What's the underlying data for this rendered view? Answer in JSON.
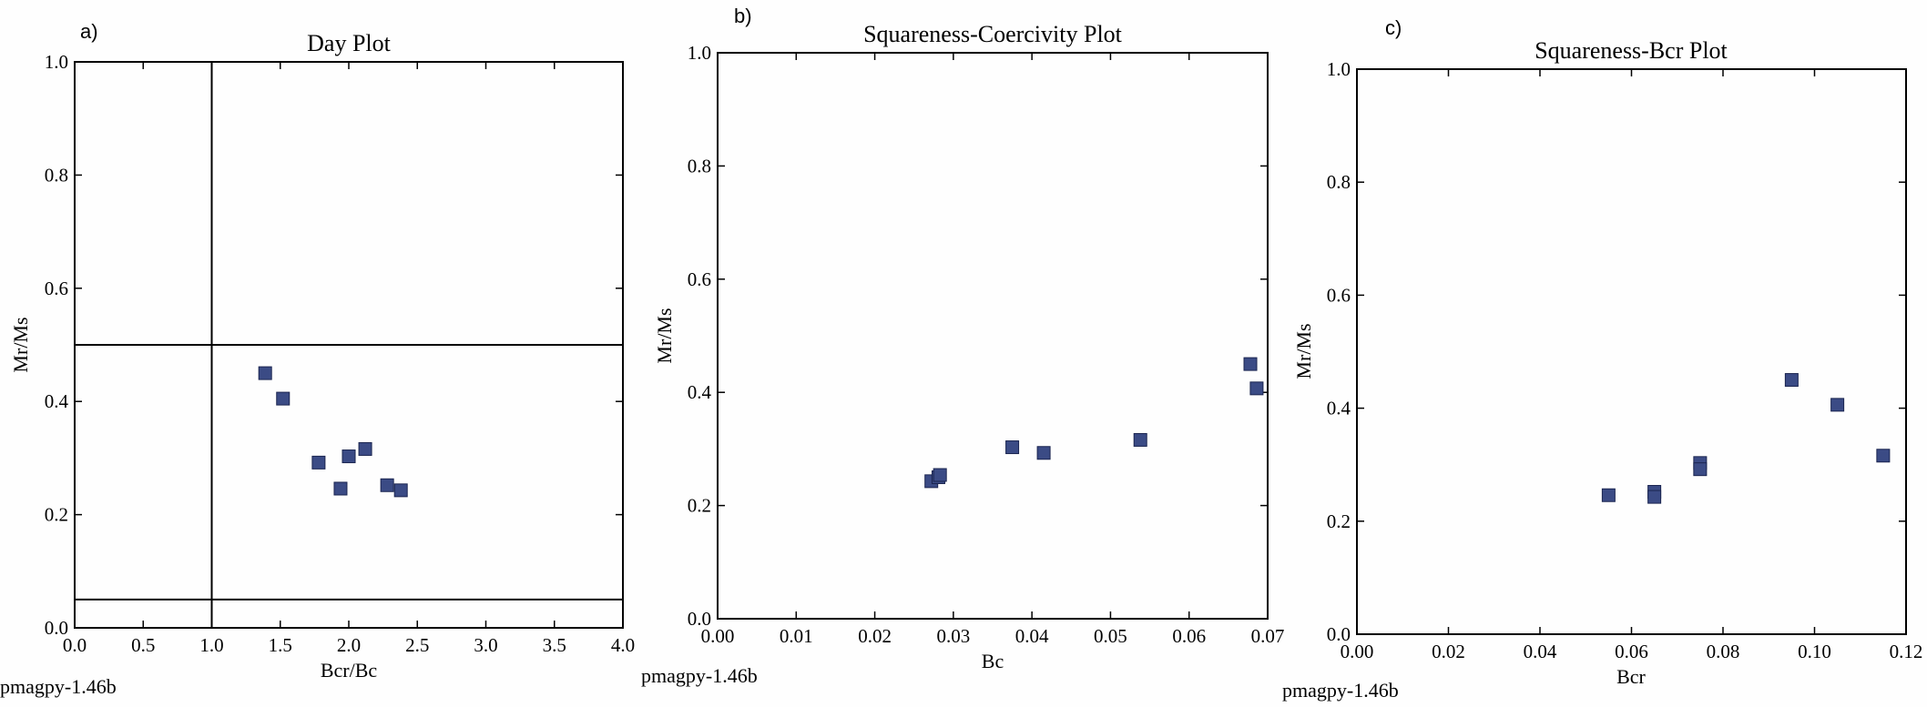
{
  "chart_data": [
    {
      "type": "scatter",
      "panel_label": "a)",
      "title": "Day Plot",
      "xlabel": "Bcr/Bc",
      "ylabel": "Mr/Ms",
      "xlim": [
        0.0,
        4.0
      ],
      "ylim": [
        0.0,
        1.0
      ],
      "xticks": [
        "0.0",
        "0.5",
        "1.0",
        "1.5",
        "2.0",
        "2.5",
        "3.0",
        "3.5",
        "4.0"
      ],
      "yticks": [
        "0.0",
        "0.2",
        "0.4",
        "0.6",
        "0.8",
        "1.0"
      ],
      "grid": false,
      "marker": "square",
      "marker_color": "#3b4b85",
      "reference_lines": {
        "vertical_x": [
          1.0
        ],
        "horizontal_y": [
          0.5,
          0.05
        ]
      },
      "points": [
        {
          "x": 1.39,
          "y": 0.45
        },
        {
          "x": 1.52,
          "y": 0.405
        },
        {
          "x": 1.78,
          "y": 0.292
        },
        {
          "x": 1.94,
          "y": 0.246
        },
        {
          "x": 2.0,
          "y": 0.303
        },
        {
          "x": 2.12,
          "y": 0.316
        },
        {
          "x": 2.28,
          "y": 0.252
        },
        {
          "x": 2.38,
          "y": 0.243
        }
      ],
      "footer": "pmagpy-1.46b"
    },
    {
      "type": "scatter",
      "panel_label": "b)",
      "title": "Squareness-Coercivity Plot",
      "xlabel": "Bc",
      "ylabel": "Mr/Ms",
      "xlim": [
        0.0,
        0.07
      ],
      "ylim": [
        0.0,
        1.0
      ],
      "xticks": [
        "0.00",
        "0.01",
        "0.02",
        "0.03",
        "0.04",
        "0.05",
        "0.06",
        "0.07"
      ],
      "yticks": [
        "0.0",
        "0.2",
        "0.4",
        "0.6",
        "0.8",
        "1.0"
      ],
      "grid": false,
      "marker": "square",
      "marker_color": "#3b4b85",
      "points": [
        {
          "x": 0.0272,
          "y": 0.243
        },
        {
          "x": 0.0281,
          "y": 0.25
        },
        {
          "x": 0.0283,
          "y": 0.254
        },
        {
          "x": 0.0375,
          "y": 0.303
        },
        {
          "x": 0.0415,
          "y": 0.293
        },
        {
          "x": 0.0538,
          "y": 0.316
        },
        {
          "x": 0.0678,
          "y": 0.45
        },
        {
          "x": 0.0686,
          "y": 0.407
        }
      ],
      "footer": "pmagpy-1.46b"
    },
    {
      "type": "scatter",
      "panel_label": "c)",
      "title": "Squareness-Bcr Plot",
      "xlabel": "Bcr",
      "ylabel": "Mr/Ms",
      "xlim": [
        0.0,
        0.12
      ],
      "ylim": [
        0.0,
        1.0
      ],
      "xticks": [
        "0.00",
        "0.02",
        "0.04",
        "0.06",
        "0.08",
        "0.10",
        "0.12"
      ],
      "yticks": [
        "0.0",
        "0.2",
        "0.4",
        "0.6",
        "0.8",
        "1.0"
      ],
      "grid": false,
      "marker": "square",
      "marker_color": "#3b4b85",
      "points": [
        {
          "x": 0.055,
          "y": 0.246
        },
        {
          "x": 0.065,
          "y": 0.252
        },
        {
          "x": 0.065,
          "y": 0.243
        },
        {
          "x": 0.075,
          "y": 0.303
        },
        {
          "x": 0.075,
          "y": 0.292
        },
        {
          "x": 0.095,
          "y": 0.45
        },
        {
          "x": 0.105,
          "y": 0.406
        },
        {
          "x": 0.115,
          "y": 0.316
        }
      ],
      "footer": "pmagpy-1.46b"
    }
  ]
}
